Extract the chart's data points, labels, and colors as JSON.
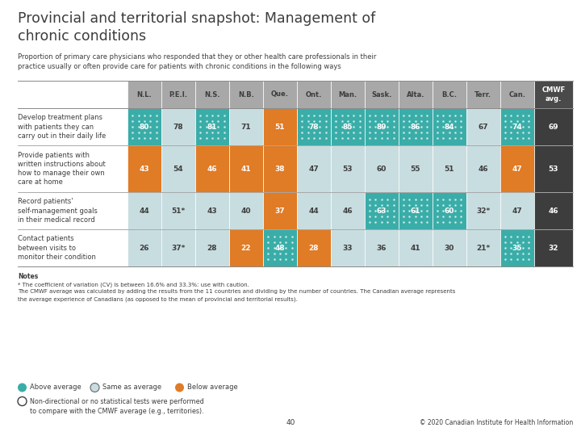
{
  "title_line1": "Provincial and territorial snapshot: Management of",
  "title_line2": "chronic conditions",
  "subtitle": "Proportion of primary care physicians who responded that they or other health care professionals in their\npractice usually or often provide care for patients with chronic conditions in the following ways",
  "columns": [
    "N.L.",
    "P.E.I.",
    "N.S.",
    "N.B.",
    "Que.",
    "Ont.",
    "Man.",
    "Sask.",
    "Alta.",
    "B.C.",
    "Terr.",
    "Can.",
    "CMWF\navg."
  ],
  "row_labels": [
    "Develop treatment plans\nwith patients they can\ncarry out in their daily life",
    "Provide patients with\nwritten instructions about\nhow to manage their own\ncare at home",
    "Record patients'\nself-management goals\nin their medical record",
    "Contact patients\nbetween visits to\nmonitor their condition"
  ],
  "values": [
    [
      "80",
      "78",
      "81",
      "71",
      "51",
      "78",
      "85",
      "89",
      "86",
      "84",
      "67",
      "74",
      "69"
    ],
    [
      "43",
      "54",
      "46",
      "41",
      "38",
      "47",
      "53",
      "60",
      "55",
      "51",
      "46",
      "47",
      "53"
    ],
    [
      "44",
      "51*",
      "43",
      "40",
      "37",
      "44",
      "46",
      "63",
      "61",
      "60",
      "32*",
      "47",
      "46"
    ],
    [
      "26",
      "37*",
      "28",
      "22",
      "48",
      "28",
      "33",
      "36",
      "41",
      "30",
      "21*",
      "35",
      "32"
    ]
  ],
  "colors": [
    [
      "teal",
      "none",
      "teal",
      "none",
      "orange",
      "teal",
      "teal",
      "teal",
      "teal",
      "teal",
      "none",
      "teal",
      "dark"
    ],
    [
      "orange",
      "none",
      "orange",
      "orange",
      "orange",
      "none",
      "none",
      "none",
      "none",
      "none",
      "none",
      "orange",
      "dark"
    ],
    [
      "none",
      "none",
      "none",
      "none",
      "orange",
      "none",
      "none",
      "teal",
      "teal",
      "teal",
      "none",
      "none",
      "dark"
    ],
    [
      "none",
      "none",
      "none",
      "orange",
      "teal",
      "orange",
      "none",
      "none",
      "none",
      "none",
      "none",
      "teal",
      "dark"
    ]
  ],
  "teal_color": "#3aada8",
  "orange_color": "#e07b26",
  "light_color": "#c8dde0",
  "dark_color": "#3d3d3d",
  "header_gray": "#a8a8a8",
  "header_dark": "#4a4a4a",
  "notes_line1": "Notes",
  "notes_line2": "* The coefficient of variation (CV) is between 16.6% and 33.3%: use with caution.",
  "notes_line3": "The CMWF average was calculated by adding the results from the 11 countries and dividing by the number of countries. The Canadian average represents",
  "notes_line4": "the average experience of Canadians (as opposed to the mean of provincial and territorial results).",
  "legend_above": "Above average",
  "legend_same": "Same as average",
  "legend_below": "Below average",
  "legend_nondirectional": "Non-directional or no statistical tests were performed\nto compare with the CMWF average (e.g., territories).",
  "page_number": "40",
  "copyright": "© 2020 Canadian Institute for Health Information"
}
